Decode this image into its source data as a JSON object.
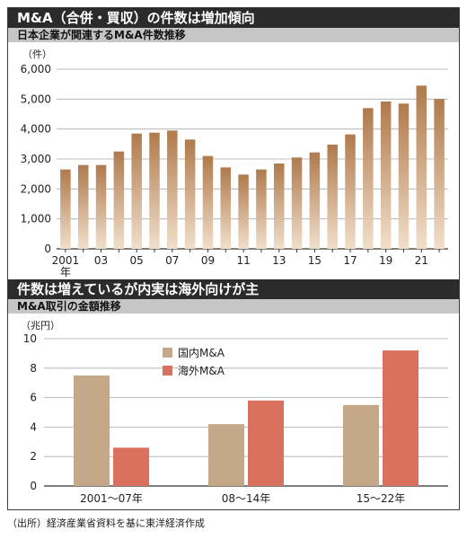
{
  "colors": {
    "title_bg": "#2b2b2b",
    "subtitle_bg": "#c6c6c6",
    "bar_top": "#b07a4c",
    "bar_bottom": "#f1dfcb",
    "domestic": "#c4a889",
    "overseas": "#d9715e"
  },
  "top_section": {
    "title": "M&A（合併・買収）の件数は増加傾向",
    "subtitle": "日本企業が関連するM&A件数推移"
  },
  "bottom_section": {
    "title": "件数は増えているが内実は海外向けが主",
    "subtitle": "M&A取引の金額推移"
  },
  "source": "（出所）経済産業省資料を基に東洋経済作成",
  "chart_data": [
    {
      "type": "bar",
      "ylabel": "（件）",
      "ylim": [
        0,
        6000
      ],
      "yticks": [
        "0",
        "1,000",
        "2,000",
        "3,000",
        "4,000",
        "5,000",
        "6,000"
      ],
      "categories": [
        "2001",
        "02",
        "03",
        "04",
        "05",
        "06",
        "07",
        "08",
        "09",
        "10",
        "11",
        "12",
        "13",
        "14",
        "15",
        "16",
        "17",
        "18",
        "19",
        "20",
        "21",
        "22"
      ],
      "xtick_labels": [
        "2001",
        "",
        "03",
        "",
        "05",
        "",
        "07",
        "",
        "09",
        "",
        "11",
        "",
        "13",
        "",
        "15",
        "",
        "17",
        "",
        "19",
        "",
        "21",
        ""
      ],
      "first_tick_suffix": "年",
      "values": [
        2650,
        2800,
        2800,
        3250,
        3850,
        3880,
        3950,
        3650,
        3100,
        2720,
        2480,
        2650,
        2850,
        3050,
        3220,
        3480,
        3820,
        4700,
        4920,
        4850,
        5450,
        5000
      ],
      "grid": true
    },
    {
      "type": "bar",
      "ylabel": "（兆円）",
      "ylim": [
        0,
        10
      ],
      "yticks": [
        "0",
        "2",
        "4",
        "6",
        "8",
        "10"
      ],
      "categories": [
        "2001～07年",
        "08～14年",
        "15～22年"
      ],
      "series": [
        {
          "name": "国内M&A",
          "values": [
            7.5,
            4.2,
            5.5
          ]
        },
        {
          "name": "海外M&A",
          "values": [
            2.6,
            5.8,
            9.2
          ]
        }
      ],
      "legend": "top-left",
      "grid": true
    }
  ]
}
